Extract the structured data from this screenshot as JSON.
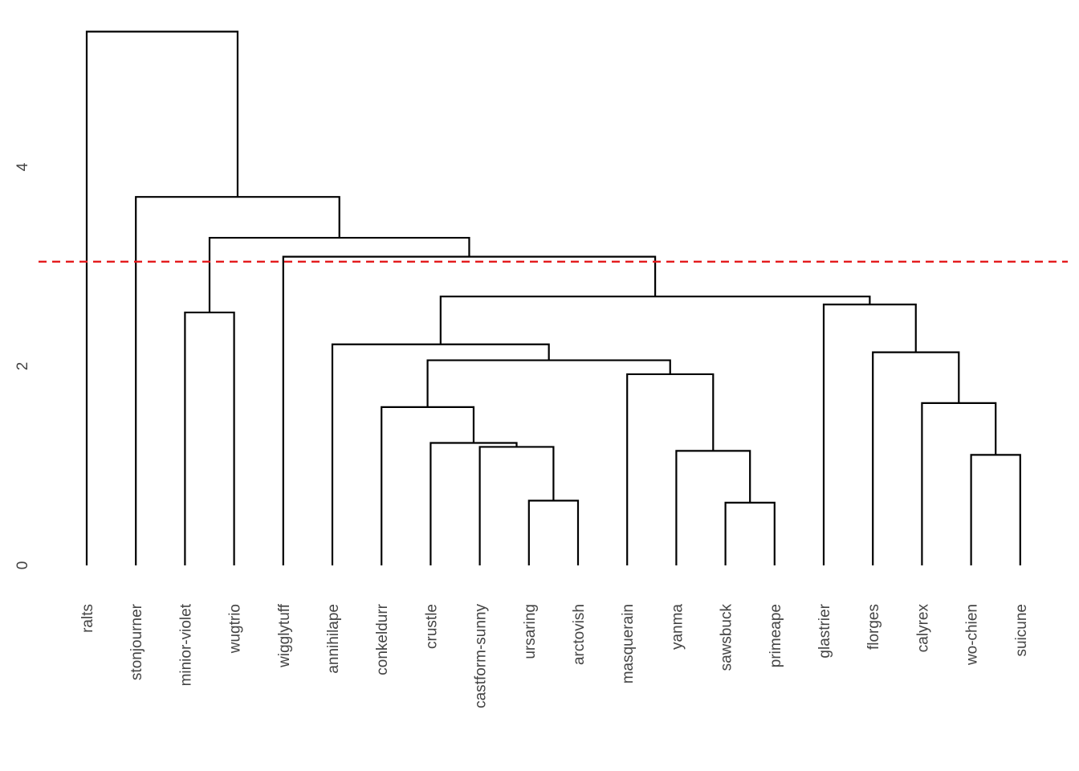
{
  "chart_data": {
    "type": "dendrogram",
    "title": "",
    "xlabel": "",
    "ylabel": "",
    "ylim": [
      0,
      5.4
    ],
    "yticks": [
      0,
      2,
      4
    ],
    "grid": false,
    "cut_height": 3.05,
    "cut_line_color": "#e41a1c",
    "line_color": "#000000",
    "leaves": [
      "ralts",
      "stonjourner",
      "minior-violet",
      "wugtrio",
      "wigglytuff",
      "annihilape",
      "conkeldurr",
      "crustle",
      "castform-sunny",
      "ursaring",
      "arctovish",
      "masquerain",
      "yanma",
      "sawsbuck",
      "primeape",
      "glastrier",
      "florges",
      "calyrex",
      "wo-chien",
      "suicune"
    ],
    "merges": [
      {
        "left": "leaf:9",
        "right": "leaf:10",
        "height": 0.65
      },
      {
        "left": "leaf:13",
        "right": "leaf:14",
        "height": 0.63
      },
      {
        "left": "leaf:18",
        "right": "leaf:19",
        "height": 1.11
      },
      {
        "left": "leaf:8",
        "right": "node:0",
        "height": 1.19
      },
      {
        "left": "leaf:12",
        "right": "node:1",
        "height": 1.15
      },
      {
        "left": "leaf:7",
        "right": "node:3",
        "height": 1.23
      },
      {
        "left": "leaf:6",
        "right": "node:5",
        "height": 1.59
      },
      {
        "left": "leaf:17",
        "right": "node:2",
        "height": 1.63
      },
      {
        "left": "leaf:11",
        "right": "node:4",
        "height": 1.92
      },
      {
        "left": "node:6",
        "right": "node:8",
        "height": 2.06
      },
      {
        "left": "leaf:16",
        "right": "node:7",
        "height": 2.14
      },
      {
        "left": "leaf:5",
        "right": "node:9",
        "height": 2.22
      },
      {
        "left": "leaf:2",
        "right": "leaf:3",
        "height": 2.54
      },
      {
        "left": "leaf:15",
        "right": "node:10",
        "height": 2.62
      },
      {
        "left": "node:11",
        "right": "node:13",
        "height": 2.7
      },
      {
        "left": "leaf:4",
        "right": "node:14",
        "height": 3.1
      },
      {
        "left": "node:12",
        "right": "node:15",
        "height": 3.29
      },
      {
        "left": "leaf:1",
        "right": "node:16",
        "height": 3.7
      },
      {
        "left": "leaf:0",
        "right": "node:17",
        "height": 5.36
      }
    ]
  }
}
